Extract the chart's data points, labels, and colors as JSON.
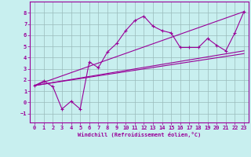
{
  "xlabel": "Windchill (Refroidissement éolien,°C)",
  "bg_color": "#c8efef",
  "line_color": "#990099",
  "grid_color": "#99bbbb",
  "series1_x": [
    0,
    1,
    2,
    3,
    4,
    5,
    6,
    7,
    8,
    9,
    10,
    11,
    12,
    13,
    14,
    15,
    16,
    17,
    18,
    19,
    20,
    21,
    22,
    23
  ],
  "series1_y": [
    1.5,
    1.9,
    1.4,
    -0.6,
    0.1,
    -0.6,
    3.6,
    3.1,
    4.5,
    5.25,
    6.4,
    7.3,
    7.7,
    6.8,
    6.4,
    6.2,
    4.9,
    4.9,
    4.9,
    5.7,
    5.1,
    4.6,
    6.2,
    8.1
  ],
  "series2_x": [
    0,
    23
  ],
  "series2_y": [
    1.5,
    8.1
  ],
  "series3_x": [
    0,
    23
  ],
  "series3_y": [
    1.5,
    4.6
  ],
  "series4_x": [
    0,
    23
  ],
  "series4_y": [
    1.5,
    4.35
  ],
  "xlim": [
    -0.5,
    23.5
  ],
  "ylim": [
    -1.8,
    9.0
  ],
  "xticks": [
    0,
    1,
    2,
    3,
    4,
    5,
    6,
    7,
    8,
    9,
    10,
    11,
    12,
    13,
    14,
    15,
    16,
    17,
    18,
    19,
    20,
    21,
    22,
    23
  ],
  "yticks": [
    -1,
    0,
    1,
    2,
    3,
    4,
    5,
    6,
    7,
    8
  ]
}
